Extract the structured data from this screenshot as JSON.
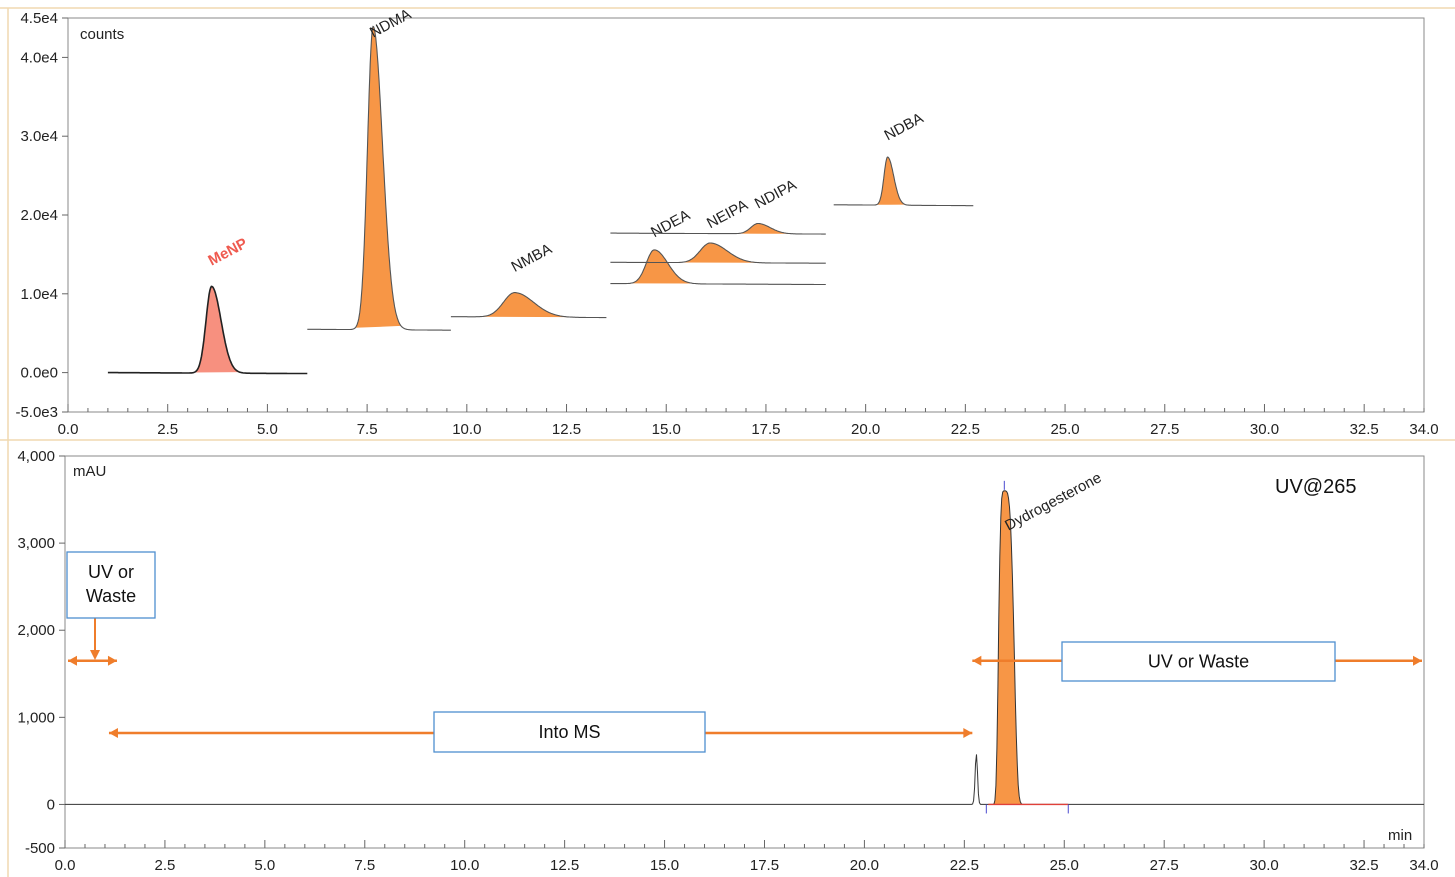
{
  "chart_data": [
    {
      "type": "line",
      "subtype": "chromatogram",
      "ylabel": "counts",
      "xlim": [
        0.0,
        34.0
      ],
      "ylim": [
        -5000,
        45000
      ],
      "x_ticks": [
        "0.0",
        "2.5",
        "5.0",
        "7.5",
        "10.0",
        "12.5",
        "15.0",
        "17.5",
        "20.0",
        "22.5",
        "25.0",
        "27.5",
        "30.0",
        "32.5",
        "34.0"
      ],
      "y_ticks": [
        "-5.0e3",
        "0.0e0",
        "1.0e4",
        "2.0e4",
        "3.0e4",
        "4.0e4",
        "4.5e4"
      ],
      "grid": false,
      "series": [
        {
          "name": "MeNP",
          "x_start": 1.0,
          "x_end": 6.0,
          "baseline": 0,
          "peak_rt": 3.6,
          "peak_height": 11000,
          "label_color": "#ef5a4f"
        },
        {
          "name": "NDMA",
          "x_start": 6.0,
          "x_end": 9.6,
          "baseline": 5500,
          "peak_rt": 7.65,
          "peak_height": 38500
        },
        {
          "name": "NMBA",
          "x_start": 9.6,
          "x_end": 13.5,
          "baseline": 7100,
          "peak_rt": 11.2,
          "peak_height": 3100
        },
        {
          "name": "NDEA",
          "x_start": 13.6,
          "x_end": 19.0,
          "baseline": 11300,
          "peak_rt": 14.7,
          "peak_height": 4300
        },
        {
          "name": "NEIPA",
          "x_start": 13.6,
          "x_end": 19.0,
          "baseline": 14000,
          "peak_rt": 16.1,
          "peak_height": 2500
        },
        {
          "name": "NDIPA",
          "x_start": 13.6,
          "x_end": 19.0,
          "baseline": 17700,
          "peak_rt": 17.3,
          "peak_height": 1300
        },
        {
          "name": "NDBA",
          "x_start": 19.2,
          "x_end": 22.7,
          "baseline": 21300,
          "peak_rt": 20.55,
          "peak_height": 6100
        }
      ]
    },
    {
      "type": "line",
      "subtype": "chromatogram",
      "ylabel": "mAU",
      "xlabel": "min",
      "xlim": [
        0.0,
        34.0
      ],
      "ylim": [
        -500,
        4000
      ],
      "x_ticks": [
        "0.0",
        "2.5",
        "5.0",
        "7.5",
        "10.0",
        "12.5",
        "15.0",
        "17.5",
        "20.0",
        "22.5",
        "25.0",
        "27.5",
        "30.0",
        "32.5",
        "34.0"
      ],
      "y_ticks": [
        "-500",
        "0",
        "1,000",
        "2,000",
        "3,000",
        "4,000"
      ],
      "grid": false,
      "annotation": "UV@265",
      "series": [
        {
          "name": "Dydrogesterone",
          "peak_rt": 23.5,
          "peak_height": 3600,
          "small_peak_rt": 22.8,
          "small_peak_height": 580
        }
      ],
      "regions": [
        {
          "label": "UV or Waste",
          "x_from": 0.0,
          "x_to": 1.3,
          "y": 1650
        },
        {
          "label": "Into MS",
          "x_from": 1.1,
          "x_to": 22.7,
          "y": 820
        },
        {
          "label": "UV or Waste",
          "x_from": 22.7,
          "x_to": 34.0,
          "y": 1650
        }
      ]
    }
  ]
}
